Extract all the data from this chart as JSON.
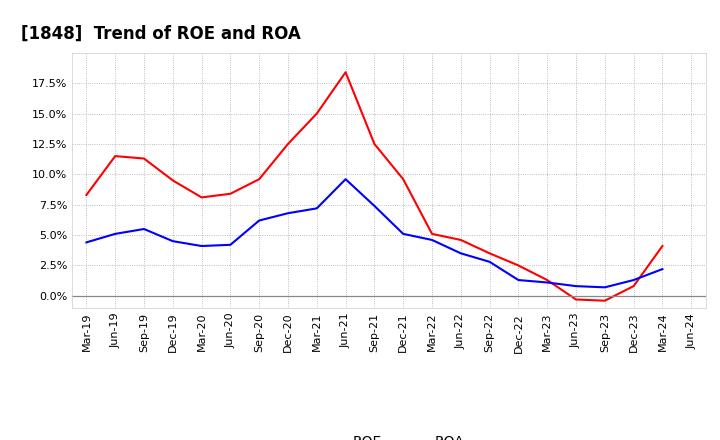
{
  "title": "[1848]  Trend of ROE and ROA",
  "x_labels": [
    "Mar-19",
    "Jun-19",
    "Sep-19",
    "Dec-19",
    "Mar-20",
    "Jun-20",
    "Sep-20",
    "Dec-20",
    "Mar-21",
    "Jun-21",
    "Sep-21",
    "Dec-21",
    "Mar-22",
    "Jun-22",
    "Sep-22",
    "Dec-22",
    "Mar-23",
    "Jun-23",
    "Sep-23",
    "Dec-23",
    "Mar-24",
    "Jun-24"
  ],
  "roe": [
    8.3,
    11.5,
    11.3,
    9.5,
    8.1,
    8.4,
    9.6,
    12.5,
    15.0,
    18.4,
    12.5,
    9.6,
    5.1,
    4.6,
    3.5,
    2.5,
    1.3,
    -0.3,
    -0.4,
    0.8,
    4.1,
    null
  ],
  "roa": [
    4.4,
    5.1,
    5.5,
    4.5,
    4.1,
    4.2,
    6.2,
    6.8,
    7.2,
    9.6,
    7.4,
    5.1,
    4.6,
    3.5,
    2.8,
    1.3,
    1.1,
    0.8,
    0.7,
    1.3,
    2.2,
    null
  ],
  "roe_color": "#ff0000",
  "roa_color": "#0000ff",
  "background_color": "#ffffff",
  "plot_bg_color": "#ffffff",
  "grid_color": "#aaaaaa",
  "ylim": [
    -1.0,
    20.0
  ],
  "yticks": [
    0.0,
    2.5,
    5.0,
    7.5,
    10.0,
    12.5,
    15.0,
    17.5
  ],
  "title_fontsize": 12,
  "legend_fontsize": 10,
  "tick_fontsize": 8
}
